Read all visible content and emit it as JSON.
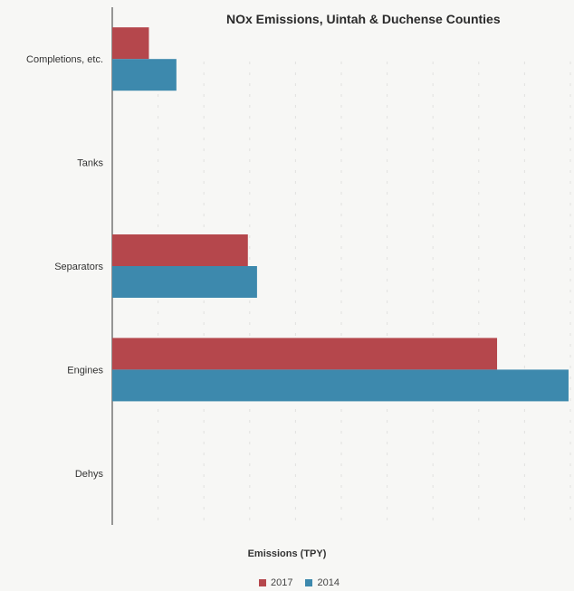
{
  "chart_data": {
    "type": "bar",
    "orientation": "horizontal",
    "title": "NOx Emissions, Uintah & Duchense Counties",
    "xlabel": "Emissions (TPY)",
    "ylabel": "",
    "categories": [
      "Completions, etc.",
      "Tanks",
      "Separators",
      "Engines",
      "Dehys"
    ],
    "series": [
      {
        "name": "2017",
        "color": "#b5474c",
        "values": [
          400,
          0,
          1480,
          4200,
          0
        ]
      },
      {
        "name": "2014",
        "color": "#3d89ad",
        "values": [
          700,
          0,
          1580,
          4980,
          0
        ]
      }
    ],
    "xlim": [
      0,
      5000
    ],
    "grid": true,
    "legend_position": "bottom"
  }
}
